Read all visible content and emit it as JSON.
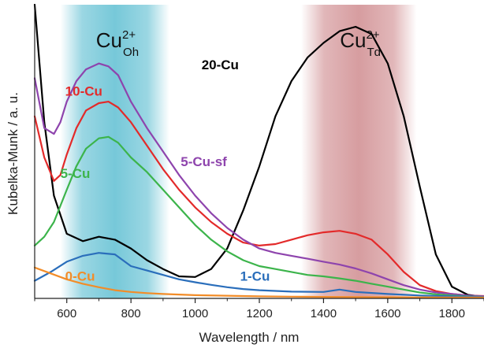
{
  "chart_data": {
    "type": "line",
    "title": "",
    "xlabel": "Wavelength / nm",
    "ylabel": "Kubelka-Munk / a. u.",
    "xlim": [
      500,
      1900
    ],
    "ylim": [
      0,
      100
    ],
    "xticks": [
      600,
      800,
      1000,
      1200,
      1400,
      1600,
      1800
    ],
    "grid": false,
    "bands": [
      {
        "id": "oh",
        "base": "Cu",
        "sup": "2+",
        "sub": "Oh",
        "x0": 580,
        "x1": 920,
        "center": 750,
        "color": "#49b6cc"
      },
      {
        "id": "td",
        "base": "Cu",
        "sup": "2+",
        "sub": "Td",
        "x0": 1330,
        "x1": 1690,
        "center": 1510,
        "color": "#c97c80"
      }
    ],
    "series": [
      {
        "name": "20-Cu",
        "color": "#000000",
        "x": [
          500,
          530,
          560,
          600,
          650,
          700,
          750,
          800,
          850,
          900,
          950,
          1000,
          1050,
          1100,
          1150,
          1200,
          1250,
          1300,
          1350,
          1400,
          1450,
          1500,
          1550,
          1600,
          1650,
          1700,
          1750,
          1800,
          1850,
          1900
        ],
        "y": [
          100,
          60,
          35,
          22,
          19.5,
          21,
          20,
          17,
          13,
          10,
          7.5,
          7.3,
          10,
          17,
          30,
          45,
          62,
          74,
          82,
          87,
          91,
          92.5,
          90,
          80,
          62,
          38,
          15,
          4,
          1.2,
          0.5
        ]
      },
      {
        "name": "10-Cu",
        "color": "#e32a2a",
        "x": [
          500,
          530,
          560,
          580,
          600,
          630,
          660,
          700,
          730,
          760,
          800,
          850,
          900,
          950,
          1000,
          1050,
          1100,
          1150,
          1200,
          1250,
          1300,
          1350,
          1400,
          1450,
          1500,
          1550,
          1600,
          1650,
          1700,
          1750,
          1800,
          1850,
          1900
        ],
        "y": [
          62,
          48,
          40,
          42,
          49,
          58,
          64,
          66.5,
          67,
          65,
          60,
          52,
          44,
          37,
          31,
          26,
          22,
          19,
          18,
          18.5,
          20,
          21.5,
          22.5,
          23,
          22,
          20,
          15,
          9,
          4.5,
          2.5,
          1.5,
          1,
          0.8
        ]
      },
      {
        "name": "5-Cu-sf",
        "color": "#8e44ad",
        "x": [
          500,
          530,
          560,
          580,
          600,
          630,
          660,
          700,
          730,
          760,
          800,
          850,
          900,
          950,
          1000,
          1050,
          1100,
          1150,
          1200,
          1250,
          1300,
          1350,
          1400,
          1450,
          1500,
          1550,
          1600,
          1650,
          1700,
          1750,
          1800,
          1850,
          1900
        ],
        "y": [
          75,
          58,
          56,
          60,
          67,
          74,
          78,
          80,
          79,
          76,
          67,
          58,
          50,
          42,
          35,
          29,
          24,
          20,
          17,
          15.5,
          14.5,
          13.5,
          12.5,
          11.5,
          10.2,
          8.5,
          6.5,
          4.5,
          3,
          2,
          1.5,
          1,
          0.7
        ]
      },
      {
        "name": "5-Cu",
        "color": "#3cb44b",
        "x": [
          500,
          530,
          560,
          600,
          630,
          660,
          700,
          730,
          760,
          800,
          850,
          900,
          950,
          1000,
          1050,
          1100,
          1150,
          1200,
          1250,
          1300,
          1350,
          1400,
          1450,
          1500,
          1550,
          1600,
          1650,
          1700,
          1750,
          1800,
          1850,
          1900
        ],
        "y": [
          18,
          21,
          26,
          37,
          45,
          51,
          54.5,
          55,
          53,
          48,
          43,
          37,
          31,
          25,
          20,
          16,
          13,
          11,
          10,
          9,
          8,
          7.5,
          6.8,
          6,
          5,
          4,
          3,
          2,
          1.4,
          1,
          0.7,
          0.5
        ]
      },
      {
        "name": "1-Cu",
        "color": "#2a6ebb",
        "x": [
          500,
          550,
          600,
          650,
          700,
          750,
          800,
          850,
          900,
          950,
          1000,
          1050,
          1100,
          1150,
          1200,
          1300,
          1400,
          1450,
          1500,
          1600,
          1700,
          1800,
          1900
        ],
        "y": [
          6,
          9,
          12.5,
          14.5,
          15.5,
          15,
          11,
          9.5,
          8,
          6.5,
          5.5,
          4.6,
          3.8,
          3.2,
          2.8,
          2.3,
          2.2,
          3,
          2.2,
          1.5,
          1,
          0.7,
          0.5
        ]
      },
      {
        "name": "0-Cu",
        "color": "#f28c28",
        "x": [
          500,
          550,
          600,
          650,
          700,
          750,
          800,
          850,
          900,
          1000,
          1100,
          1200,
          1300,
          1400,
          1500,
          1600,
          1700,
          1800,
          1900
        ],
        "y": [
          10.5,
          8.5,
          6.5,
          5,
          3.8,
          2.8,
          2.2,
          1.8,
          1.5,
          1.1,
          0.9,
          0.7,
          0.6,
          0.5,
          0.45,
          0.4,
          0.35,
          0.3,
          0.3
        ]
      }
    ],
    "labels": [
      {
        "text": "20-Cu",
        "x": 1020,
        "y": 78,
        "color": "#000000"
      },
      {
        "text": "10-Cu",
        "x": 595,
        "y": 69,
        "color": "#e32a2a"
      },
      {
        "text": "5-Cu-sf",
        "x": 955,
        "y": 45,
        "color": "#8e44ad"
      },
      {
        "text": "5-Cu",
        "x": 580,
        "y": 41,
        "color": "#3cb44b"
      },
      {
        "text": "1-Cu",
        "x": 1140,
        "y": 6,
        "color": "#2a6ebb"
      },
      {
        "text": "0-Cu",
        "x": 595,
        "y": 6,
        "color": "#f28c28"
      }
    ]
  }
}
